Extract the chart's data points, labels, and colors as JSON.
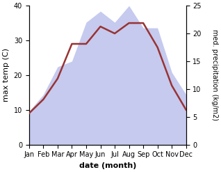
{
  "months": [
    "Jan",
    "Feb",
    "Mar",
    "Apr",
    "May",
    "Jun",
    "Jul",
    "Aug",
    "Sep",
    "Oct",
    "Nov",
    "Dec"
  ],
  "temp": [
    9,
    13,
    19,
    29,
    29,
    34,
    32,
    35,
    35,
    28,
    17,
    10
  ],
  "precip": [
    6,
    9,
    14,
    15,
    22,
    24,
    22,
    25,
    21,
    21,
    13,
    9
  ],
  "temp_color": "#993333",
  "precip_color_fill": "#c5caee",
  "background_color": "#ffffff",
  "xlabel": "date (month)",
  "ylabel_left": "max temp (C)",
  "ylabel_right": "med. precipitation (kg/m2)",
  "ylim_left": [
    0,
    40
  ],
  "ylim_right": [
    0,
    25
  ],
  "temp_linewidth": 1.8,
  "xlabel_fontsize": 8,
  "ylabel_fontsize": 8,
  "tick_fontsize": 7,
  "yticks_left": [
    0,
    10,
    20,
    30,
    40
  ],
  "yticks_right": [
    0,
    5,
    10,
    15,
    20,
    25
  ]
}
